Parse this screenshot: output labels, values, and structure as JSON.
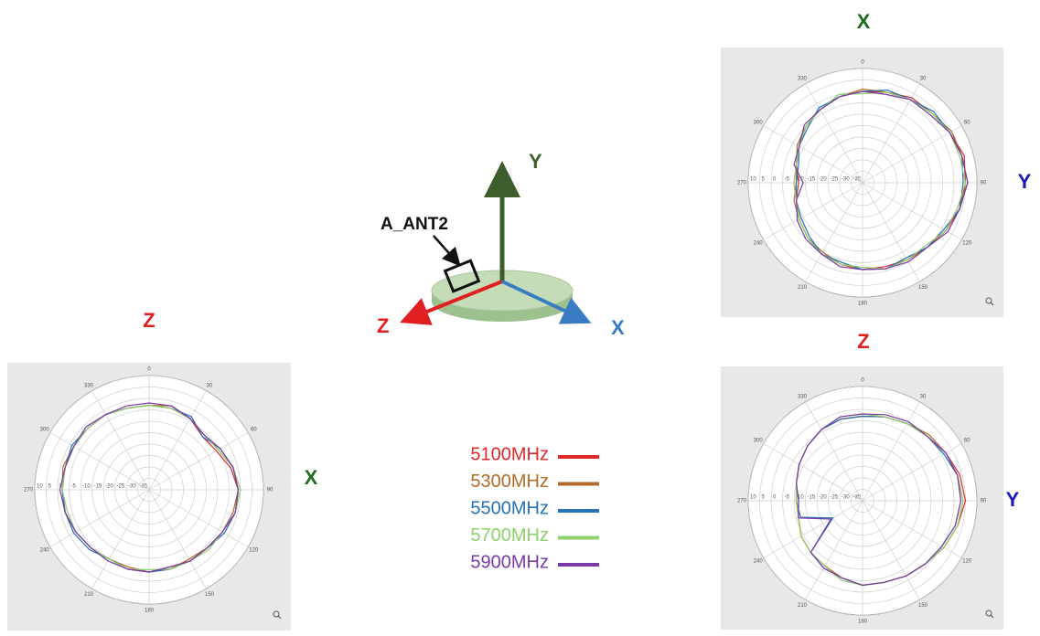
{
  "diagram": {
    "y_axis": "Y",
    "z_axis": "Z",
    "x_axis": "X",
    "antenna_label": "A_ANT2"
  },
  "chart_data": [
    {
      "type": "polar",
      "title": "X",
      "title_color": "#1d6b1d",
      "right_label": "Y",
      "right_label_color": "#1a1ab8",
      "theta": [
        0,
        15,
        30,
        45,
        60,
        75,
        90,
        105,
        120,
        135,
        150,
        165,
        180,
        195,
        210,
        225,
        240,
        255,
        270,
        285,
        300,
        315,
        330,
        345
      ],
      "thetaticks": [
        0,
        30,
        60,
        90,
        120,
        150,
        180,
        210,
        240,
        270,
        300,
        330
      ],
      "rlim": [
        -40,
        10
      ],
      "rticks": [
        10,
        5,
        0,
        -5,
        -10,
        -15,
        -20,
        -25,
        -30,
        -35
      ],
      "series": [
        {
          "name": "5100MHz",
          "color": "#e02828",
          "values": [
            0,
            1,
            3,
            3,
            4,
            6,
            5,
            4,
            2,
            0,
            -1,
            -2,
            -2,
            -3,
            -4,
            -6,
            -8,
            -10,
            -12,
            -10,
            -8,
            -5,
            -3,
            -1
          ]
        },
        {
          "name": "5300MHz",
          "color": "#b46a28",
          "values": [
            1,
            1,
            2,
            3,
            5,
            5,
            6,
            3,
            2,
            0,
            -1,
            -1,
            -2,
            -3,
            -5,
            -6,
            -8,
            -9,
            -11,
            -10,
            -7,
            -5,
            -3,
            -1
          ]
        },
        {
          "name": "5500MHz",
          "color": "#2472b8",
          "values": [
            0,
            2,
            2,
            4,
            4,
            5,
            4,
            4,
            1,
            0,
            -2,
            -1,
            -2,
            -4,
            -4,
            -7,
            -9,
            -10,
            -11,
            -11,
            -8,
            -6,
            -2,
            -1
          ]
        },
        {
          "name": "5700MHz",
          "color": "#8fd16a",
          "values": [
            -1,
            1,
            2,
            3,
            4,
            4,
            5,
            3,
            2,
            -1,
            -1,
            -1,
            -3,
            -3,
            -4,
            -6,
            -8,
            -10,
            -10,
            -10,
            -8,
            -5,
            -3,
            0
          ]
        },
        {
          "name": "5900MHz",
          "color": "#7a3aa8",
          "values": [
            0,
            0,
            2,
            2,
            4,
            5,
            6,
            4,
            3,
            0,
            0,
            -1,
            -2,
            -2,
            -4,
            -5,
            -7,
            -10,
            -14,
            -9,
            -8,
            -4,
            -3,
            -1
          ]
        }
      ]
    },
    {
      "type": "polar",
      "title": "Z",
      "title_color": "#e02020",
      "right_label": "X",
      "right_label_color": "#1d6b1d",
      "theta": [
        0,
        15,
        30,
        45,
        60,
        75,
        90,
        105,
        120,
        135,
        150,
        165,
        180,
        195,
        210,
        225,
        240,
        255,
        270,
        285,
        300,
        315,
        330,
        345
      ],
      "thetaticks": [
        0,
        30,
        60,
        90,
        120,
        150,
        180,
        210,
        240,
        270,
        300,
        330
      ],
      "rlim": [
        -40,
        10
      ],
      "rticks": [
        10,
        5,
        0,
        -5,
        -10,
        -15,
        -20,
        -25,
        -30,
        -35
      ],
      "series": [
        {
          "name": "5100MHz",
          "color": "#e02828",
          "values": [
            -3,
            -3,
            -4,
            -7,
            -6,
            -3,
            -1,
            -1,
            -3,
            -4,
            -4,
            -5,
            -4,
            -4,
            -5,
            -4,
            -3,
            -2,
            -2,
            -2,
            -2,
            -2,
            -2,
            -3
          ]
        },
        {
          "name": "5300MHz",
          "color": "#b46a28",
          "values": [
            -3,
            -2,
            -4,
            -6,
            -5,
            -2,
            -1,
            -2,
            -3,
            -4,
            -5,
            -4,
            -4,
            -5,
            -5,
            -4,
            -3,
            -2,
            -2,
            -1,
            -2,
            -2,
            -2,
            -3
          ]
        },
        {
          "name": "5500MHz",
          "color": "#2472b8",
          "values": [
            -3,
            -3,
            -3,
            -7,
            -4,
            -2,
            -1,
            -1,
            -2,
            -4,
            -4,
            -4,
            -4,
            -4,
            -5,
            -3,
            -2,
            -2,
            -2,
            -2,
            -1,
            -2,
            -2,
            -3
          ]
        },
        {
          "name": "5700MHz",
          "color": "#8fd16a",
          "values": [
            -3,
            -3,
            -4,
            -6,
            -5,
            -2,
            0,
            -1,
            -3,
            -3,
            -4,
            -4,
            -5,
            -4,
            -5,
            -4,
            -3,
            -3,
            -2,
            -2,
            -2,
            -2,
            -2,
            -3
          ]
        },
        {
          "name": "5900MHz",
          "color": "#7a3aa8",
          "values": [
            -2,
            -2,
            -4,
            -6,
            -4,
            -2,
            -1,
            -1,
            -3,
            -4,
            -4,
            -5,
            -4,
            -4,
            -4,
            -4,
            -3,
            -2,
            -1,
            -2,
            -2,
            -1,
            -2,
            -2
          ]
        }
      ]
    },
    {
      "type": "polar",
      "title": "Z",
      "title_color": "#e02020",
      "right_label": "Y",
      "right_label_color": "#1a1ab8",
      "theta": [
        0,
        15,
        30,
        45,
        60,
        75,
        90,
        105,
        120,
        135,
        150,
        165,
        180,
        195,
        210,
        225,
        240,
        255,
        270,
        285,
        300,
        315,
        330,
        345
      ],
      "thetaticks": [
        0,
        30,
        60,
        90,
        120,
        150,
        180,
        210,
        240,
        270,
        300,
        330
      ],
      "rlim": [
        -40,
        10
      ],
      "rticks": [
        10,
        5,
        0,
        -5,
        -10,
        -15,
        -20,
        -25,
        -30,
        -35
      ],
      "series": [
        {
          "name": "5100MHz",
          "color": "#e02828",
          "values": [
            -3,
            -2,
            -1,
            0,
            2,
            4,
            5,
            3,
            1,
            -1,
            -2,
            -3,
            -3,
            -5,
            -7,
            -8,
            -9,
            -11,
            -11,
            -10,
            -8,
            -6,
            -4,
            -3
          ]
        },
        {
          "name": "5300MHz",
          "color": "#b46a28",
          "values": [
            -3,
            -2,
            -1,
            1,
            2,
            3,
            4,
            3,
            1,
            -1,
            -2,
            -3,
            -3,
            -5,
            -7,
            -8,
            -9,
            -11,
            -12,
            -10,
            -8,
            -6,
            -4,
            -3
          ]
        },
        {
          "name": "5500MHz",
          "color": "#2472b8",
          "values": [
            -3,
            -2,
            -1,
            0,
            1,
            3,
            3,
            2,
            0,
            -1,
            -2,
            -3,
            -3,
            -5,
            -6,
            -8,
            -25,
            -12,
            -11,
            -10,
            -8,
            -6,
            -4,
            -3
          ]
        },
        {
          "name": "5700MHz",
          "color": "#8fd16a",
          "values": [
            -2,
            -2,
            -1,
            0,
            2,
            3,
            4,
            3,
            1,
            -1,
            -2,
            -3,
            -3,
            -4,
            -7,
            -8,
            -9,
            -11,
            -11,
            -10,
            -8,
            -6,
            -4,
            -2
          ]
        },
        {
          "name": "5900MHz",
          "color": "#7a3aa8",
          "values": [
            -2,
            -1,
            0,
            0,
            2,
            3,
            3,
            2,
            0,
            -1,
            -2,
            -3,
            -3,
            -5,
            -6,
            -8,
            -24,
            -11,
            -12,
            -10,
            -8,
            -6,
            -4,
            -2
          ]
        }
      ]
    }
  ]
}
